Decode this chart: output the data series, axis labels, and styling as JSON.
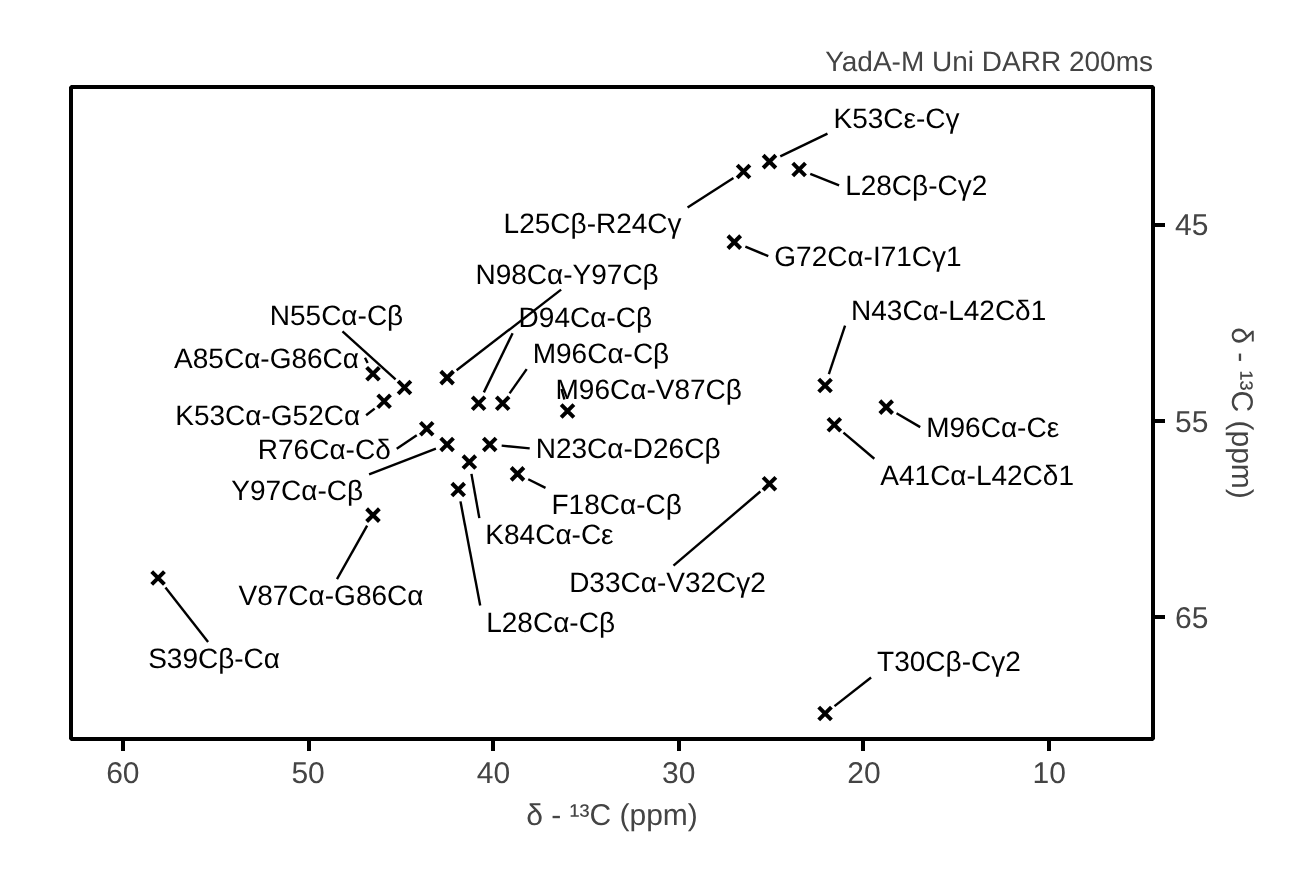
{
  "chart_data": {
    "type": "scatter",
    "title": "YadA-M Uni DARR 200ms",
    "xlabel": "δ - ¹³C (ppm)",
    "ylabel": "δ - ¹³C (ppm)",
    "xlim": [
      62.8,
      4.4
    ],
    "ylim": [
      71.2,
      38.0
    ],
    "xticks": [
      60,
      50,
      40,
      30,
      20,
      10
    ],
    "yticks": [
      45,
      55,
      65
    ],
    "grid": false,
    "marker": "cross",
    "series": [
      {
        "color": "#000000",
        "x": [
          25.1,
          26.5,
          23.5,
          42.5,
          27.0,
          22.1,
          18.8,
          21.6,
          44.8,
          40.8,
          39.5,
          36.0,
          46.5,
          45.9,
          43.6,
          40.2,
          42.5,
          38.7,
          41.3,
          25.1,
          41.9,
          46.5,
          58.1,
          22.1
        ],
        "values": [
          41.8,
          42.3,
          42.2,
          52.8,
          45.9,
          53.2,
          54.3,
          55.2,
          53.3,
          54.1,
          54.1,
          54.5,
          52.6,
          54.0,
          55.4,
          56.2,
          56.2,
          57.7,
          57.1,
          58.2,
          58.5,
          59.8,
          63.0,
          69.9
        ]
      }
    ],
    "annotations": [
      {
        "text": "K53Cε-Cγ",
        "x": 25.1,
        "y": 41.8
      },
      {
        "text": "L25Cβ-R24Cγ",
        "x": 26.5,
        "y": 42.3
      },
      {
        "text": "L28Cβ-Cγ2",
        "x": 23.5,
        "y": 42.2
      },
      {
        "text": "N98Cα-Y97Cβ",
        "x": 42.5,
        "y": 52.8
      },
      {
        "text": "G72Cα-I71Cγ1",
        "x": 27.0,
        "y": 45.9
      },
      {
        "text": "N43Cα-L42Cδ1",
        "x": 22.1,
        "y": 53.2
      },
      {
        "text": "M96Cα-Cε",
        "x": 18.8,
        "y": 54.3
      },
      {
        "text": "A41Cα-L42Cδ1",
        "x": 21.6,
        "y": 55.2
      },
      {
        "text": "N55Cα-Cβ",
        "x": 44.8,
        "y": 53.3
      },
      {
        "text": "D94Cα-Cβ",
        "x": 40.8,
        "y": 54.1
      },
      {
        "text": "M96Cα-Cβ",
        "x": 39.5,
        "y": 54.1
      },
      {
        "text": "M96Cα-V87Cβ",
        "x": 36.0,
        "y": 54.5
      },
      {
        "text": "A85Cα-G86Cα",
        "x": 46.5,
        "y": 52.6
      },
      {
        "text": "K53Cα-G52Cα",
        "x": 45.9,
        "y": 54.0
      },
      {
        "text": "R76Cα-Cδ",
        "x": 43.6,
        "y": 55.4
      },
      {
        "text": "N23Cα-D26Cβ",
        "x": 40.2,
        "y": 56.2
      },
      {
        "text": "Y97Cα-Cβ",
        "x": 42.5,
        "y": 56.2
      },
      {
        "text": "F18Cα-Cβ",
        "x": 38.7,
        "y": 57.7
      },
      {
        "text": "K84Cα-Cε",
        "x": 41.3,
        "y": 57.1
      },
      {
        "text": "D33Cα-V32Cγ2",
        "x": 25.1,
        "y": 58.2
      },
      {
        "text": "L28Cα-Cβ",
        "x": 41.9,
        "y": 58.5
      },
      {
        "text": "V87Cα-G86Cα",
        "x": 46.5,
        "y": 59.8
      },
      {
        "text": "S39Cβ-Cα",
        "x": 58.1,
        "y": 63.0
      },
      {
        "text": "T30Cβ-Cγ2",
        "x": 22.1,
        "y": 69.9
      }
    ]
  }
}
